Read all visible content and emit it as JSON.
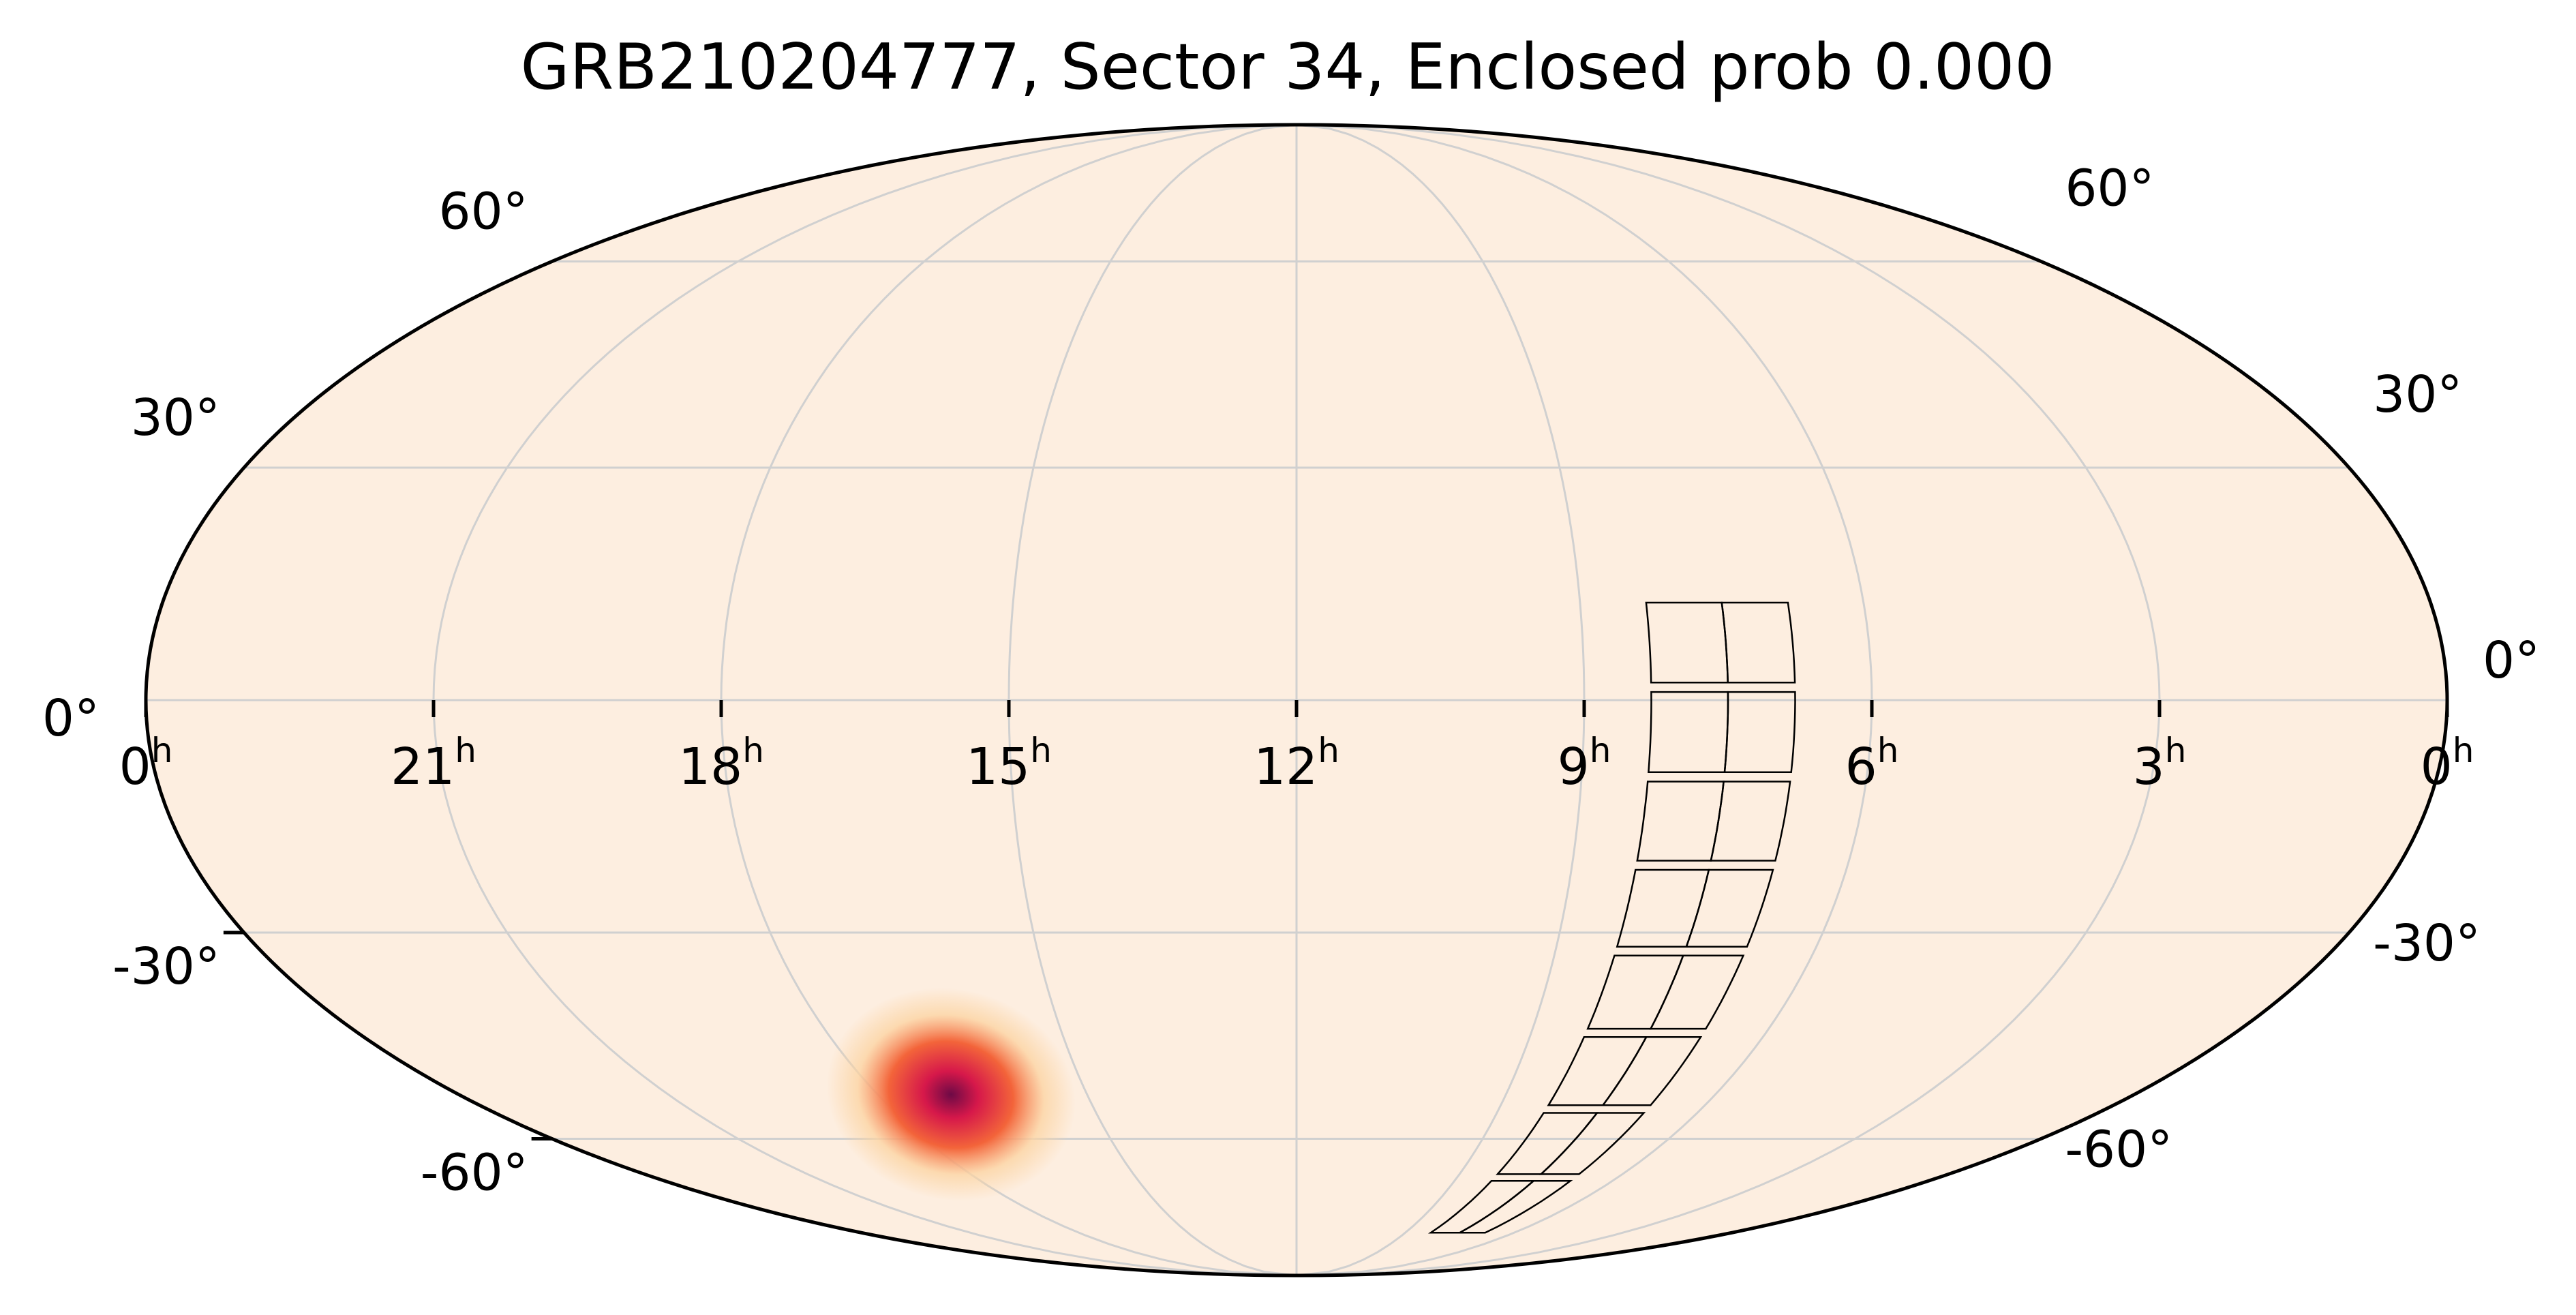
{
  "chart_data": {
    "type": "heatmap",
    "projection": "mollweide",
    "title": "GRB210204777, Sector 34, Enclosed prob 0.000",
    "grid": true,
    "colors": {
      "background": "#fdeee0",
      "grid": "#d0d0d0",
      "outline": "#000000",
      "footprint": "#000000",
      "heat_low": "#fcd3a0",
      "heat_mid": "#f3643a",
      "heat_high": "#d6184a",
      "heat_peak": "#6d0a46"
    },
    "x_ticks": [
      {
        "hours": 24,
        "value": "0",
        "unit": "h"
      },
      {
        "hours": 21,
        "value": "21",
        "unit": "h"
      },
      {
        "hours": 18,
        "value": "18",
        "unit": "h"
      },
      {
        "hours": 15,
        "value": "15",
        "unit": "h"
      },
      {
        "hours": 12,
        "value": "12",
        "unit": "h"
      },
      {
        "hours": 9,
        "value": "9",
        "unit": "h"
      },
      {
        "hours": 6,
        "value": "6",
        "unit": "h"
      },
      {
        "hours": 3,
        "value": "3",
        "unit": "h"
      },
      {
        "hours": 0,
        "value": "0",
        "unit": "h"
      }
    ],
    "y_ticks": [
      {
        "deg": 60,
        "label": "60°"
      },
      {
        "deg": 30,
        "label": "30°"
      },
      {
        "deg": 0,
        "label": "0°"
      },
      {
        "deg": -30,
        "label": "-30°"
      },
      {
        "deg": -60,
        "label": "-60°"
      }
    ],
    "probability_peak": {
      "ra_hours": 16.95,
      "dec_deg": -53,
      "sigma_ra_hours": 0.45,
      "sigma_dec_deg": 4.5
    },
    "tess_sector": {
      "sector": 34,
      "camera_columns": [
        {
          "ra_left_hours": 8.3,
          "ra_right_hours": 7.5
        },
        {
          "ra_left_hours": 7.5,
          "ra_right_hours": 6.8
        }
      ],
      "dec_top_deg": 13,
      "dec_bottom_deg": -78,
      "ccd_rows": 8
    }
  }
}
